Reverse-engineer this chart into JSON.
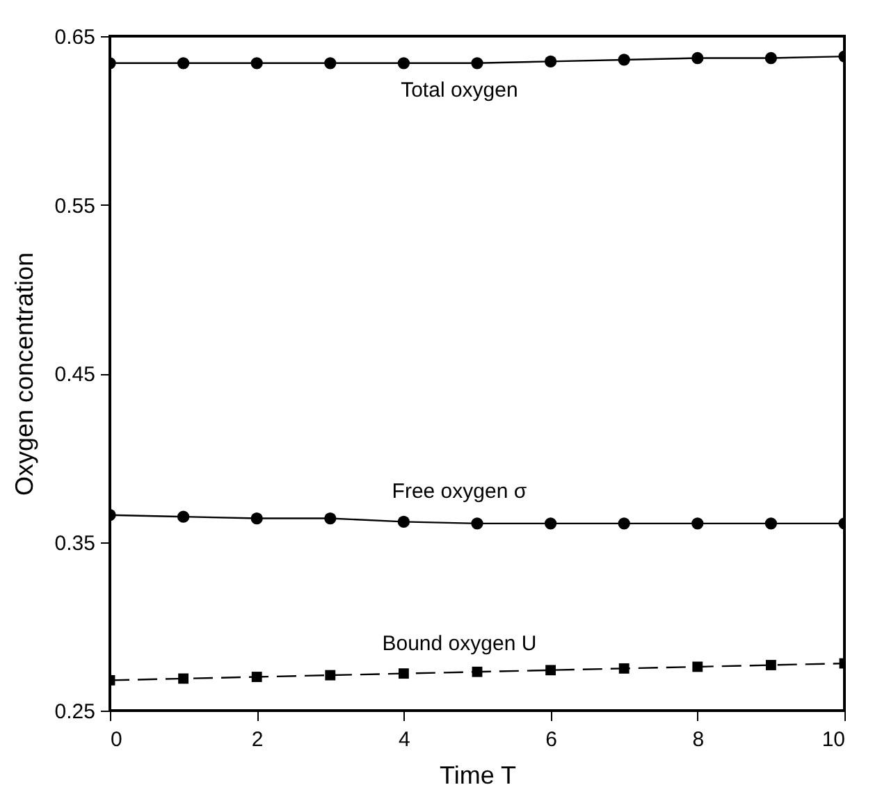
{
  "chart_data": {
    "type": "line",
    "xlabel": "Time T",
    "ylabel": "Oxygen concentration",
    "x": [
      0,
      1,
      2,
      3,
      4,
      5,
      6,
      7,
      8,
      9,
      10
    ],
    "xlim": [
      0,
      10
    ],
    "xticks": [
      0,
      2,
      4,
      6,
      8,
      10
    ],
    "ylim": [
      0.25,
      0.65
    ],
    "yticks": [
      0.25,
      0.35,
      0.45,
      0.55,
      0.65
    ],
    "series": [
      {
        "name": "Total oxygen",
        "color": "#000000",
        "marker": "circle",
        "line_style": "solid",
        "values": [
          0.634,
          0.634,
          0.634,
          0.634,
          0.634,
          0.634,
          0.635,
          0.636,
          0.637,
          0.637,
          0.638
        ]
      },
      {
        "name": "Free oxygen σ",
        "color": "#000000",
        "marker": "circle",
        "line_style": "solid",
        "values": [
          0.366,
          0.365,
          0.364,
          0.364,
          0.362,
          0.361,
          0.361,
          0.361,
          0.361,
          0.361,
          0.361
        ]
      },
      {
        "name": "Bound oxygen U",
        "color": "#000000",
        "marker": "square",
        "line_style": "dashed",
        "values": [
          0.268,
          0.269,
          0.27,
          0.271,
          0.272,
          0.273,
          0.274,
          0.275,
          0.276,
          0.277,
          0.278
        ]
      }
    ],
    "grid": false
  }
}
